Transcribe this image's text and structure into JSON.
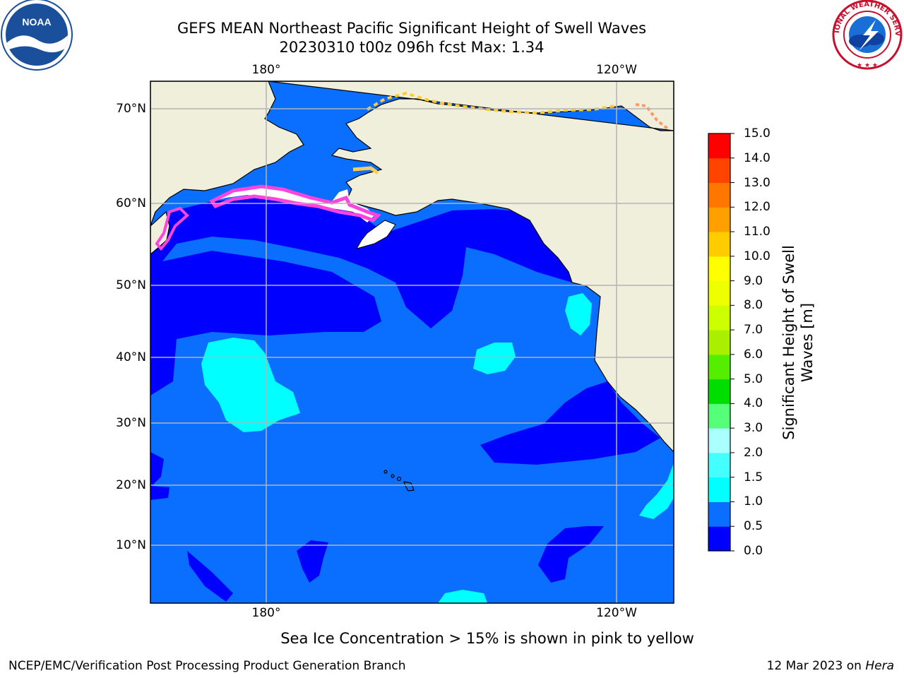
{
  "header": {
    "title_line1": "GEFS MEAN Northeast Pacific Significant Height of Swell Waves",
    "title_line2": "20230310 t00z 096h fcst   Max: 1.34"
  },
  "map": {
    "lon_ticks": [
      "180°",
      "120°W"
    ],
    "lat_ticks": [
      "70°N",
      "60°N",
      "50°N",
      "40°N",
      "30°N",
      "20°N",
      "10°N"
    ]
  },
  "colorbar": {
    "label": "Significant Height of Swell Waves [m]",
    "ticks": [
      "0.0",
      "0.5",
      "1.0",
      "1.5",
      "2.0",
      "3.0",
      "4.0",
      "5.0",
      "6.0",
      "7.0",
      "8.0",
      "9.0",
      "10.0",
      "11.0",
      "12.0",
      "13.0",
      "14.0",
      "15.0"
    ],
    "colors": [
      "#0000ff",
      "#0a6fff",
      "#00ffff",
      "#44ffff",
      "#aaffff",
      "#55ff77",
      "#00dd00",
      "#55ee00",
      "#aaee00",
      "#ccff00",
      "#eeff00",
      "#ffff00",
      "#ffcc00",
      "#ffa000",
      "#ff7700",
      "#ff4400",
      "#ff0000"
    ]
  },
  "footer": {
    "note": "Sea Ice Concentration > 15% is shown in pink to yellow",
    "credit": "NCEP/EMC/Verification Post Processing Product Generation Branch",
    "date": "12 Mar 2023 on ",
    "machine": "Hera"
  },
  "logos": {
    "left": {
      "icon": "noaa-logo",
      "text": "NOAA"
    },
    "right": {
      "icon": "nws-logo",
      "text": "NATIONAL WEATHER SERVICE"
    }
  }
}
